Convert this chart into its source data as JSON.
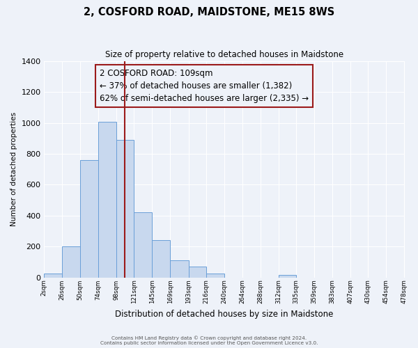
{
  "title": "2, COSFORD ROAD, MAIDSTONE, ME15 8WS",
  "subtitle": "Size of property relative to detached houses in Maidstone",
  "xlabel": "Distribution of detached houses by size in Maidstone",
  "ylabel": "Number of detached properties",
  "bin_edges": [
    2,
    26,
    50,
    74,
    98,
    121,
    145,
    169,
    193,
    216,
    240,
    264,
    288,
    312,
    335,
    359,
    383,
    407,
    430,
    454,
    478
  ],
  "counts": [
    25,
    200,
    760,
    1010,
    890,
    420,
    240,
    110,
    70,
    25,
    0,
    0,
    0,
    15,
    0,
    0,
    0,
    0,
    0,
    0
  ],
  "property_size": 109,
  "bar_facecolor": "#c8d8ee",
  "bar_edgecolor": "#6a9fd8",
  "vline_color": "#9b1a1a",
  "annotation_box_edgecolor": "#9b1a1a",
  "annotation_line1": "2 COSFORD ROAD: 109sqm",
  "annotation_line2": "← 37% of detached houses are smaller (1,382)",
  "annotation_line3": "62% of semi-detached houses are larger (2,335) →",
  "annotation_fontsize": 8.5,
  "bg_color": "#eef2f9",
  "grid_color": "#ffffff",
  "ylim": [
    0,
    1400
  ],
  "yticks": [
    0,
    200,
    400,
    600,
    800,
    1000,
    1200,
    1400
  ],
  "tick_labels": [
    "2sqm",
    "26sqm",
    "50sqm",
    "74sqm",
    "98sqm",
    "121sqm",
    "145sqm",
    "169sqm",
    "193sqm",
    "216sqm",
    "240sqm",
    "264sqm",
    "288sqm",
    "312sqm",
    "335sqm",
    "359sqm",
    "383sqm",
    "407sqm",
    "430sqm",
    "454sqm",
    "478sqm"
  ],
  "footer1": "Contains HM Land Registry data © Crown copyright and database right 2024.",
  "footer2": "Contains public sector information licensed under the Open Government Licence v3.0."
}
